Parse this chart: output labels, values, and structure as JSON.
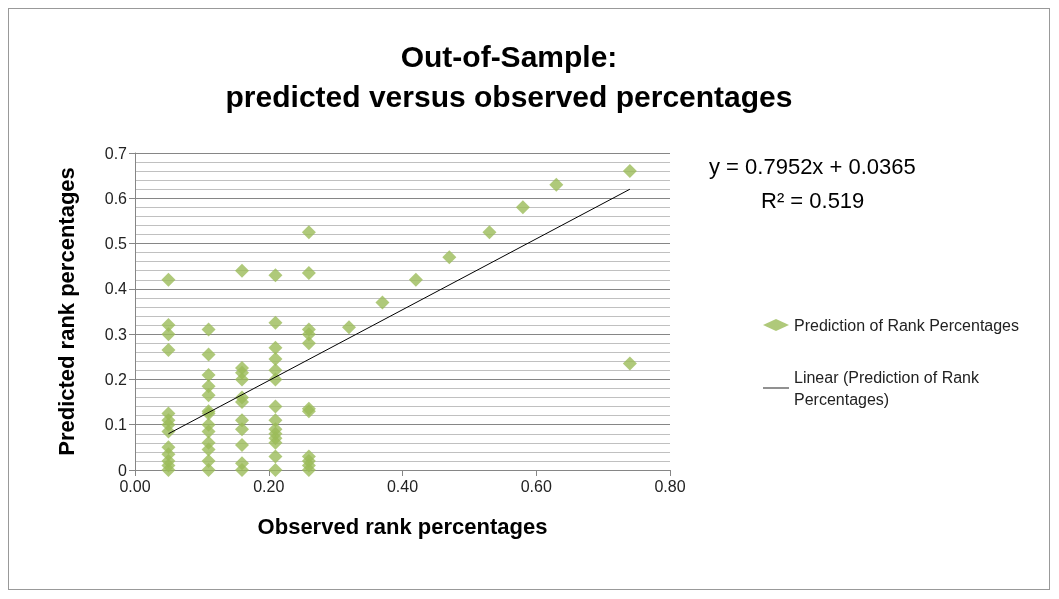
{
  "chart_data": {
    "type": "scatter",
    "title": "Out-of-Sample:\npredicted versus observed percentages",
    "xlabel": "Observed rank percentages",
    "ylabel": "Predicted rank percentages",
    "xlim": [
      0,
      0.8
    ],
    "xticks": [
      {
        "value": 0,
        "label": "0.00"
      },
      {
        "value": 0.2,
        "label": "0.20"
      },
      {
        "value": 0.4,
        "label": "0.40"
      },
      {
        "value": 0.6,
        "label": "0.60"
      },
      {
        "value": 0.8,
        "label": "0.80"
      }
    ],
    "ylim": [
      0,
      0.7
    ],
    "yticks": [
      0,
      0.1,
      0.2,
      0.3,
      0.4,
      0.5,
      0.6,
      0.7
    ],
    "grid": "y",
    "legend": "right",
    "annotations": [
      "y = 0.7952x + 0.0365",
      "R² = 0.519"
    ],
    "series": [
      {
        "name": "Prediction of Rank Percentages",
        "marker": "diamond",
        "color": "#9bbb59",
        "x": [
          0.05,
          0.05,
          0.05,
          0.05,
          0.05,
          0.05,
          0.05,
          0.05,
          0.05,
          0.05,
          0.05,
          0.05,
          0.05,
          0.11,
          0.11,
          0.11,
          0.11,
          0.11,
          0.11,
          0.11,
          0.11,
          0.11,
          0.11,
          0.11,
          0.11,
          0.11,
          0.16,
          0.16,
          0.16,
          0.16,
          0.16,
          0.16,
          0.16,
          0.16,
          0.16,
          0.16,
          0.16,
          0.21,
          0.21,
          0.21,
          0.21,
          0.21,
          0.21,
          0.21,
          0.21,
          0.21,
          0.21,
          0.21,
          0.21,
          0.21,
          0.21,
          0.26,
          0.26,
          0.26,
          0.26,
          0.26,
          0.26,
          0.26,
          0.26,
          0.26,
          0.26,
          0.26,
          0.32,
          0.37,
          0.42,
          0.47,
          0.53,
          0.58,
          0.63,
          0.74,
          0.74
        ],
        "values": [
          0.42,
          0.32,
          0.3,
          0.265,
          0.125,
          0.11,
          0.1,
          0.085,
          0.05,
          0.035,
          0.02,
          0.01,
          0,
          0.31,
          0.255,
          0.21,
          0.185,
          0.165,
          0.13,
          0.125,
          0.1,
          0.085,
          0.06,
          0.045,
          0.02,
          0,
          0.44,
          0.225,
          0.215,
          0.2,
          0.16,
          0.15,
          0.11,
          0.09,
          0.055,
          0.015,
          0,
          0.43,
          0.325,
          0.27,
          0.245,
          0.22,
          0.2,
          0.14,
          0.11,
          0.09,
          0.08,
          0.07,
          0.06,
          0.03,
          0,
          0.525,
          0.435,
          0.31,
          0.3,
          0.28,
          0.135,
          0.13,
          0.03,
          0.02,
          0.01,
          0,
          0.315,
          0.37,
          0.42,
          0.47,
          0.525,
          0.58,
          0.63,
          0.66,
          0.235
        ]
      },
      {
        "name": "Linear (Prediction of Rank Percentages)",
        "type": "line",
        "marker": "none",
        "color": "#000000",
        "x": [
          0.05,
          0.74
        ],
        "values": [
          0.08,
          0.62
        ]
      }
    ]
  }
}
